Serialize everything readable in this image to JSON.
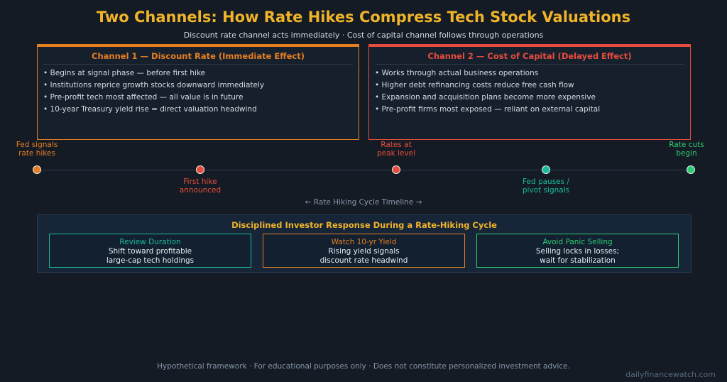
{
  "title": "Two Channels: How Rate Hikes Compress Tech Stock Valuations",
  "subtitle": "Discount rate channel acts immediately · Cost of capital channel follows through operations",
  "channel1": {
    "heading": "Channel 1 — Discount Rate  (Immediate Effect)",
    "color": "#e67e22",
    "bullets": [
      "• Begins at signal phase — before first hike",
      "• Institutions reprice growth stocks downward immediately",
      "• Pre-profit tech most affected — all value is in future",
      "• 10-year Treasury yield rise = direct valuation headwind"
    ]
  },
  "channel2": {
    "heading": "Channel 2 — Cost of Capital  (Delayed Effect)",
    "color": "#e74c3c",
    "bullets": [
      "• Works through actual business operations",
      "• Higher debt refinancing costs reduce free cash flow",
      "• Expansion and acquisition plans become more expensive",
      "• Pre-profit firms most exposed — reliant on external capital"
    ]
  },
  "timeline": {
    "caption": "← Rate Hiking Cycle Timeline →",
    "events": [
      {
        "line1": "Fed signals",
        "line2": "rate hikes",
        "color": "#e67e22"
      },
      {
        "line1": "First hike",
        "line2": "announced",
        "color": "#e74c3c"
      },
      {
        "line1": "Rates at",
        "line2": "peak level",
        "color": "#e74c3c"
      },
      {
        "line1": "Fed pauses /",
        "line2": "pivot signals",
        "color": "#1abc9c"
      },
      {
        "line1": "Rate cuts",
        "line2": "begin",
        "color": "#2ecc71"
      }
    ]
  },
  "response": {
    "title": "Disciplined Investor Response During a Rate-Hiking Cycle",
    "boxes": [
      {
        "heading": "Review Duration",
        "line1": "Shift toward profitable",
        "line2": "large-cap tech holdings",
        "color": "#1abc9c"
      },
      {
        "heading": "Watch 10-yr Yield",
        "line1": "Rising yield signals",
        "line2": "discount rate headwind",
        "color": "#e67e22"
      },
      {
        "heading": "Avoid Panic Selling",
        "line1": "Selling locks in losses;",
        "line2": "wait for stabilization",
        "color": "#2ecc71"
      }
    ]
  },
  "footer": "Hypothetical framework · For educational purposes only · Does not constitute personalized investment advice.",
  "watermark": "dailyfinancewatch.com"
}
